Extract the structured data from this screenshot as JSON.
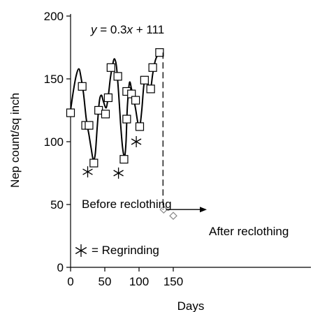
{
  "chart_data": {
    "type": "scatter",
    "equation_label": "y = 0.3x + 111",
    "xlabel": "Days",
    "ylabel": "Nep count/sq inch",
    "xlim": [
      0,
      190
    ],
    "ylim": [
      0,
      200
    ],
    "x_ticks": [
      0,
      50,
      100,
      150
    ],
    "y_ticks": [
      0,
      50,
      100,
      150,
      200
    ],
    "grid": false,
    "series": [
      {
        "marker": "square",
        "points": [
          {
            "x": 0,
            "y": 123
          },
          {
            "x": 17,
            "y": 144
          },
          {
            "x": 22,
            "y": 113
          },
          {
            "x": 27,
            "y": 113
          },
          {
            "x": 34,
            "y": 83
          },
          {
            "x": 41,
            "y": 125
          },
          {
            "x": 51,
            "y": 122
          },
          {
            "x": 55,
            "y": 135
          },
          {
            "x": 59,
            "y": 159
          },
          {
            "x": 69,
            "y": 152
          },
          {
            "x": 78,
            "y": 86
          },
          {
            "x": 82,
            "y": 140
          },
          {
            "x": 82,
            "y": 118
          },
          {
            "x": 89,
            "y": 138
          },
          {
            "x": 95,
            "y": 133
          },
          {
            "x": 101,
            "y": 112
          },
          {
            "x": 108,
            "y": 149
          },
          {
            "x": 117,
            "y": 142
          },
          {
            "x": 120,
            "y": 159
          },
          {
            "x": 130,
            "y": 171
          }
        ]
      },
      {
        "marker": "star",
        "points": [
          {
            "x": 25,
            "y": 76
          },
          {
            "x": 70,
            "y": 75
          },
          {
            "x": 96,
            "y": 100
          }
        ]
      },
      {
        "marker": "diamond",
        "points": [
          {
            "x": 136,
            "y": 46
          },
          {
            "x": 150,
            "y": 41
          }
        ]
      }
    ],
    "trend_curve": [
      [
        0,
        125
      ],
      [
        4,
        140
      ],
      [
        8,
        152
      ],
      [
        12,
        158
      ],
      [
        15,
        152
      ],
      [
        19,
        138
      ],
      [
        23,
        118
      ],
      [
        27,
        105
      ],
      [
        30,
        95
      ],
      [
        33,
        86
      ],
      [
        36,
        90
      ],
      [
        39,
        112
      ],
      [
        42,
        132
      ],
      [
        45,
        137
      ],
      [
        48,
        132
      ],
      [
        52,
        127
      ],
      [
        55,
        136
      ],
      [
        58,
        150
      ],
      [
        61,
        160
      ],
      [
        64,
        166
      ],
      [
        67,
        160
      ],
      [
        70,
        140
      ],
      [
        73,
        115
      ],
      [
        76,
        95
      ],
      [
        79,
        88
      ],
      [
        81,
        100
      ],
      [
        83,
        128
      ],
      [
        86,
        147
      ],
      [
        89,
        142
      ],
      [
        92,
        135
      ],
      [
        95,
        126
      ],
      [
        98,
        116
      ],
      [
        101,
        112
      ],
      [
        104,
        125
      ],
      [
        107,
        145
      ],
      [
        110,
        150
      ],
      [
        113,
        146
      ],
      [
        117,
        143
      ],
      [
        120,
        154
      ],
      [
        124,
        165
      ],
      [
        130,
        172
      ]
    ],
    "reclothing_day": 135,
    "annotations": {
      "before": "Before reclothing",
      "after": "After reclothing",
      "legend_text": "= Regrinding"
    }
  }
}
